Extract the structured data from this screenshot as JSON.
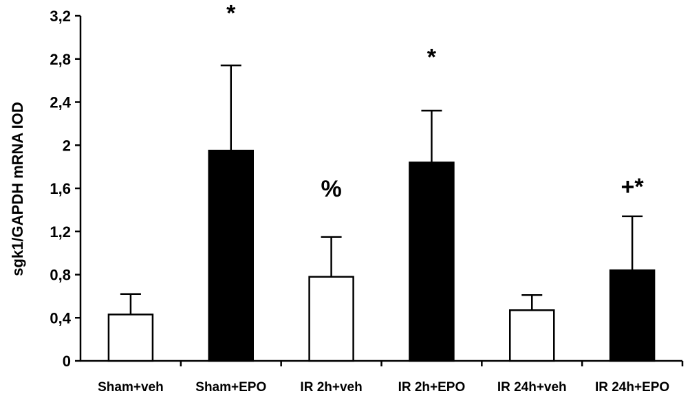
{
  "chart_data": {
    "type": "bar",
    "title": "",
    "xlabel": "",
    "ylabel": "sgk1/GAPDH mRNA IOD",
    "ylim": [
      0,
      3.2
    ],
    "yticks": [
      0,
      0.4,
      0.8,
      1.2,
      1.6,
      2,
      2.4,
      2.8,
      3.2
    ],
    "ytick_labels": [
      "0",
      "0,4",
      "0,8",
      "1,2",
      "1,6",
      "2",
      "2,4",
      "2,8",
      "3,2"
    ],
    "categories": [
      "Sham+veh",
      "Sham+EPO",
      "IR 2h+veh",
      "IR 2h+EPO",
      "IR 24h+veh",
      "IR 24h+EPO"
    ],
    "values": [
      0.43,
      1.95,
      0.78,
      1.84,
      0.47,
      0.84
    ],
    "errors": [
      0.19,
      0.79,
      0.37,
      0.48,
      0.14,
      0.5
    ],
    "bar_fills": [
      "#ffffff",
      "#000000",
      "#ffffff",
      "#000000",
      "#ffffff",
      "#000000"
    ],
    "annotations": [
      {
        "category_index": 1,
        "text": "*",
        "y": 3.23
      },
      {
        "category_index": 2,
        "text": "%",
        "y": 1.6
      },
      {
        "category_index": 3,
        "text": "*",
        "y": 2.82
      },
      {
        "category_index": 5,
        "text": "+*",
        "y": 1.62
      }
    ],
    "grid": false,
    "legend": "none"
  }
}
